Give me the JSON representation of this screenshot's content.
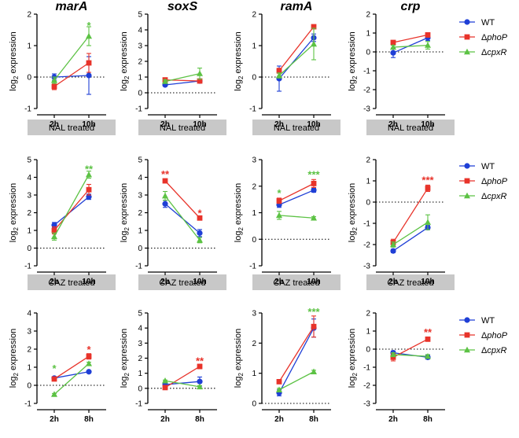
{
  "colors": {
    "WT": "#1f3fd6",
    "phoP": "#e8332a",
    "cpxR": "#5cc244",
    "banner": "#c8c8c8"
  },
  "legend": {
    "prefix": "Δ",
    "entries": [
      {
        "key": "WT",
        "text": "WT",
        "gene": "",
        "marker": "circle"
      },
      {
        "key": "phoP",
        "text": "",
        "gene": "phoP",
        "marker": "square"
      },
      {
        "key": "cpxR",
        "text": "",
        "gene": "cpxR",
        "marker": "triangle"
      }
    ]
  },
  "ylabel": {
    "base": "log",
    "sub": "2",
    "rest": " expression"
  },
  "banners": {
    "row1": "NAL treated",
    "row2": "CAZ treated"
  },
  "chart_data": [
    {
      "type": "line",
      "row": 0,
      "col": 0,
      "title": "marA",
      "categories": [
        "2h",
        "10h"
      ],
      "ylim": [
        -1,
        2
      ],
      "yticks": [
        -1,
        0,
        1,
        2
      ],
      "series": [
        {
          "name": "WT",
          "values": [
            0.0,
            0.05
          ],
          "errors": [
            0.1,
            0.6
          ]
        },
        {
          "name": "ΔphoP",
          "values": [
            -0.3,
            0.45
          ],
          "errors": [
            0.1,
            0.3
          ]
        },
        {
          "name": "ΔcpxR",
          "values": [
            -0.1,
            1.3
          ],
          "errors": [
            0.1,
            0.3
          ]
        }
      ],
      "annotations": [
        {
          "text": "*",
          "category": "10h",
          "y": 1.65,
          "series": "ΔcpxR"
        }
      ]
    },
    {
      "type": "line",
      "row": 0,
      "col": 1,
      "title": "soxS",
      "categories": [
        "2h",
        "10h"
      ],
      "ylim": [
        -1,
        5
      ],
      "yticks": [
        -1,
        0,
        1,
        2,
        3,
        4,
        5
      ],
      "series": [
        {
          "name": "WT",
          "values": [
            0.5,
            0.75
          ],
          "errors": [
            0.08,
            0.1
          ]
        },
        {
          "name": "ΔphoP",
          "values": [
            0.82,
            0.75
          ],
          "errors": [
            0.08,
            0.1
          ]
        },
        {
          "name": "ΔcpxR",
          "values": [
            0.72,
            1.22
          ],
          "errors": [
            0.1,
            0.35
          ]
        }
      ],
      "annotations": []
    },
    {
      "type": "line",
      "row": 0,
      "col": 2,
      "title": "ramA",
      "categories": [
        "2h",
        "10h"
      ],
      "ylim": [
        -1,
        2
      ],
      "yticks": [
        -1,
        0,
        1,
        2
      ],
      "series": [
        {
          "name": "WT",
          "values": [
            -0.05,
            1.25
          ],
          "errors": [
            0.4,
            0.12
          ]
        },
        {
          "name": "ΔphoP",
          "values": [
            0.2,
            1.6
          ],
          "errors": [
            0.08,
            0.06
          ]
        },
        {
          "name": "ΔcpxR",
          "values": [
            0.05,
            1.05
          ],
          "errors": [
            0.08,
            0.5
          ]
        }
      ],
      "annotations": []
    },
    {
      "type": "line",
      "row": 0,
      "col": 3,
      "title": "crp",
      "categories": [
        "2h",
        "10h"
      ],
      "ylim": [
        -3,
        2
      ],
      "yticks": [
        -3,
        -2,
        -1,
        0,
        1,
        2
      ],
      "series": [
        {
          "name": "WT",
          "values": [
            -0.05,
            0.75
          ],
          "errors": [
            0.25,
            0.15
          ]
        },
        {
          "name": "ΔphoP",
          "values": [
            0.5,
            0.9
          ],
          "errors": [
            0.1,
            0.12
          ]
        },
        {
          "name": "ΔcpxR",
          "values": [
            0.25,
            0.35
          ],
          "errors": [
            0.1,
            0.2
          ]
        }
      ],
      "annotations": []
    },
    {
      "type": "line",
      "row": 1,
      "col": 0,
      "title": "",
      "categories": [
        "2h",
        "10h"
      ],
      "ylim": [
        -1,
        5
      ],
      "yticks": [
        -1,
        0,
        1,
        2,
        3,
        4,
        5
      ],
      "series": [
        {
          "name": "WT",
          "values": [
            1.3,
            2.9
          ],
          "errors": [
            0.15,
            0.15
          ]
        },
        {
          "name": "ΔphoP",
          "values": [
            1.0,
            3.3
          ],
          "errors": [
            0.2,
            0.3
          ]
        },
        {
          "name": "ΔcpxR",
          "values": [
            0.65,
            4.15
          ],
          "errors": [
            0.2,
            0.2
          ]
        }
      ],
      "annotations": [
        {
          "text": "**",
          "category": "10h",
          "y": 4.5,
          "series": "ΔcpxR"
        }
      ]
    },
    {
      "type": "line",
      "row": 1,
      "col": 1,
      "title": "",
      "categories": [
        "2h",
        "10h"
      ],
      "ylim": [
        -1,
        5
      ],
      "yticks": [
        -1,
        0,
        1,
        2,
        3,
        4,
        5
      ],
      "series": [
        {
          "name": "WT",
          "values": [
            2.5,
            0.85
          ],
          "errors": [
            0.2,
            0.2
          ]
        },
        {
          "name": "ΔphoP",
          "values": [
            3.8,
            1.7
          ],
          "errors": [
            0.08,
            0.08
          ]
        },
        {
          "name": "ΔcpxR",
          "values": [
            2.95,
            0.45
          ],
          "errors": [
            0.25,
            0.15
          ]
        }
      ],
      "annotations": [
        {
          "text": "**",
          "category": "2h",
          "y": 4.2,
          "series": "ΔphoP"
        },
        {
          "text": "*",
          "category": "10h",
          "y": 2.0,
          "series": "ΔphoP"
        }
      ]
    },
    {
      "type": "line",
      "row": 1,
      "col": 2,
      "title": "",
      "categories": [
        "2h",
        "10h"
      ],
      "ylim": [
        -1,
        3
      ],
      "yticks": [
        -1,
        0,
        1,
        2,
        3
      ],
      "series": [
        {
          "name": "WT",
          "values": [
            1.3,
            1.85
          ],
          "errors": [
            0.1,
            0.08
          ]
        },
        {
          "name": "ΔphoP",
          "values": [
            1.45,
            2.1
          ],
          "errors": [
            0.1,
            0.15
          ]
        },
        {
          "name": "ΔcpxR",
          "values": [
            0.9,
            0.8
          ],
          "errors": [
            0.15,
            0.05
          ]
        }
      ],
      "annotations": [
        {
          "text": "*",
          "category": "2h",
          "y": 1.75,
          "series": "ΔcpxR"
        },
        {
          "text": "***",
          "category": "10h",
          "y": 2.45,
          "series": "ΔcpxR"
        }
      ]
    },
    {
      "type": "line",
      "row": 1,
      "col": 3,
      "title": "",
      "categories": [
        "2h",
        "10h"
      ],
      "ylim": [
        -3,
        2
      ],
      "yticks": [
        -3,
        -2,
        -1,
        0,
        1,
        2
      ],
      "series": [
        {
          "name": "WT",
          "values": [
            -2.3,
            -1.2
          ],
          "errors": [
            0.08,
            0.1
          ]
        },
        {
          "name": "ΔphoP",
          "values": [
            -1.9,
            0.65
          ],
          "errors": [
            0.15,
            0.15
          ]
        },
        {
          "name": "ΔcpxR",
          "values": [
            -2.0,
            -0.95
          ],
          "errors": [
            0.12,
            0.35
          ]
        }
      ],
      "annotations": [
        {
          "text": "***",
          "category": "10h",
          "y": 1.05,
          "series": "ΔphoP"
        }
      ]
    },
    {
      "type": "line",
      "row": 2,
      "col": 0,
      "title": "",
      "categories": [
        "2h",
        "8h"
      ],
      "ylim": [
        -1,
        4
      ],
      "yticks": [
        -1,
        0,
        1,
        2,
        3,
        4
      ],
      "series": [
        {
          "name": "WT",
          "values": [
            0.4,
            0.75
          ],
          "errors": [
            0.05,
            0.05
          ]
        },
        {
          "name": "ΔphoP",
          "values": [
            0.35,
            1.6
          ],
          "errors": [
            0.05,
            0.15
          ]
        },
        {
          "name": "ΔcpxR",
          "values": [
            -0.5,
            1.2
          ],
          "errors": [
            0.05,
            0.08
          ]
        }
      ],
      "annotations": [
        {
          "text": "*",
          "category": "2h",
          "y": 0.95,
          "series": "ΔcpxR"
        },
        {
          "text": "*",
          "category": "8h",
          "y": 2.0,
          "series": "ΔphoP"
        }
      ]
    },
    {
      "type": "line",
      "row": 2,
      "col": 1,
      "title": "",
      "categories": [
        "2h",
        "8h"
      ],
      "ylim": [
        -1,
        5
      ],
      "yticks": [
        -1,
        0,
        1,
        2,
        3,
        4,
        5
      ],
      "series": [
        {
          "name": "WT",
          "values": [
            0.25,
            0.45
          ],
          "errors": [
            0.05,
            0.3
          ]
        },
        {
          "name": "ΔphoP",
          "values": [
            0.05,
            1.45
          ],
          "errors": [
            0.05,
            0.15
          ]
        },
        {
          "name": "ΔcpxR",
          "values": [
            0.5,
            0.1
          ],
          "errors": [
            0.05,
            0.08
          ]
        }
      ],
      "annotations": [
        {
          "text": "**",
          "category": "8h",
          "y": 1.85,
          "series": "ΔphoP"
        }
      ]
    },
    {
      "type": "line",
      "row": 2,
      "col": 2,
      "title": "",
      "categories": [
        "2h",
        "8h"
      ],
      "ylim": [
        0,
        3
      ],
      "yticks": [
        0,
        1,
        2,
        3
      ],
      "series": [
        {
          "name": "WT",
          "values": [
            0.35,
            2.5
          ],
          "errors": [
            0.1,
            0.3
          ]
        },
        {
          "name": "ΔphoP",
          "values": [
            0.72,
            2.55
          ],
          "errors": [
            0.05,
            0.35
          ]
        },
        {
          "name": "ΔcpxR",
          "values": [
            0.45,
            1.05
          ],
          "errors": [
            0.05,
            0.05
          ]
        }
      ],
      "annotations": [
        {
          "text": "***",
          "category": "8h",
          "y": 3.05,
          "series": "ΔcpxR"
        }
      ]
    },
    {
      "type": "line",
      "row": 2,
      "col": 3,
      "title": "",
      "categories": [
        "2h",
        "8h"
      ],
      "ylim": [
        -3,
        2
      ],
      "yticks": [
        -3,
        -2,
        -1,
        0,
        1,
        2
      ],
      "series": [
        {
          "name": "WT",
          "values": [
            -0.2,
            -0.45
          ],
          "errors": [
            0.1,
            0.1
          ]
        },
        {
          "name": "ΔphoP",
          "values": [
            -0.45,
            0.55
          ],
          "errors": [
            0.2,
            0.05
          ]
        },
        {
          "name": "ΔcpxR",
          "values": [
            -0.3,
            -0.4
          ],
          "errors": [
            0.1,
            0.1
          ]
        }
      ],
      "annotations": [
        {
          "text": "**",
          "category": "8h",
          "y": 0.95,
          "series": "ΔphoP"
        }
      ]
    }
  ]
}
